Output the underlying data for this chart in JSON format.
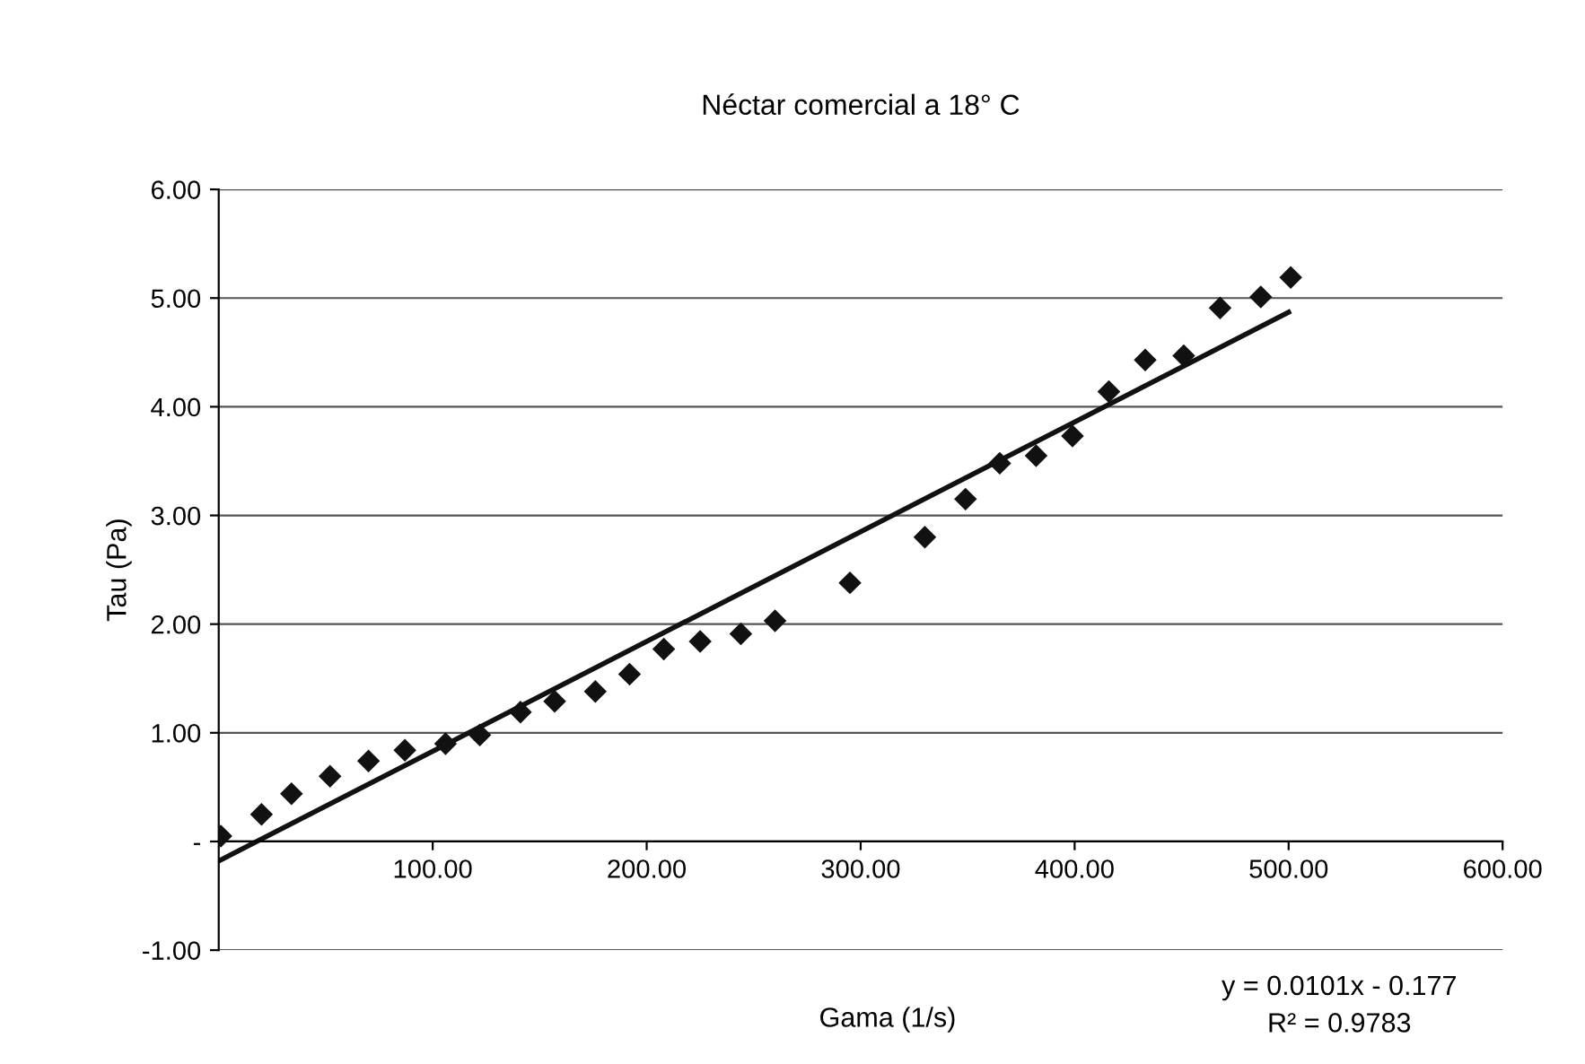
{
  "chart_data": {
    "type": "scatter",
    "title": "Néctar comercial a 18° C",
    "xlabel": "Gama (1/s)",
    "ylabel": "Tau (Pa)",
    "annotations": [
      "y = 0.0101x - 0.177",
      "R² = 0.9783"
    ],
    "xlim": [
      0,
      600
    ],
    "xticks": [
      {
        "value": 100,
        "label": "100.00"
      },
      {
        "value": 200,
        "label": "200.00"
      },
      {
        "value": 300,
        "label": "300.00"
      },
      {
        "value": 400,
        "label": "400.00"
      },
      {
        "value": 500,
        "label": "500.00"
      },
      {
        "value": 600,
        "label": "600.00"
      }
    ],
    "ylim": [
      -1,
      6
    ],
    "yticks": [
      {
        "value": -1,
        "label": "-1.00"
      },
      {
        "value": 0,
        "label": "-"
      },
      {
        "value": 1,
        "label": "1.00"
      },
      {
        "value": 2,
        "label": "2.00"
      },
      {
        "value": 3,
        "label": "3.00"
      },
      {
        "value": 4,
        "label": "4.00"
      },
      {
        "value": 5,
        "label": "5.00"
      },
      {
        "value": 6,
        "label": "6.00"
      }
    ],
    "grid": "y",
    "legend": false,
    "marker": "diamond",
    "series": [
      {
        "color": "#111111",
        "x": [
          1,
          20,
          34,
          52,
          70,
          87,
          106,
          122,
          141,
          157,
          176,
          192,
          208,
          225,
          244,
          260,
          295,
          330,
          349,
          365,
          382,
          399,
          416,
          433,
          451,
          468,
          487,
          501
        ],
        "values": [
          0.05,
          0.25,
          0.44,
          0.6,
          0.74,
          0.84,
          0.9,
          0.98,
          1.19,
          1.29,
          1.38,
          1.54,
          1.77,
          1.84,
          1.91,
          2.03,
          2.38,
          2.8,
          3.15,
          3.48,
          3.55,
          3.73,
          4.14,
          4.43,
          4.47,
          4.91,
          5.01,
          5.19
        ]
      },
      {
        "type": "line",
        "color": "#111111",
        "x": [
          0,
          500
        ],
        "values": [
          -0.18,
          4.87
        ],
        "line_style": "solid",
        "marker": "none"
      }
    ]
  }
}
